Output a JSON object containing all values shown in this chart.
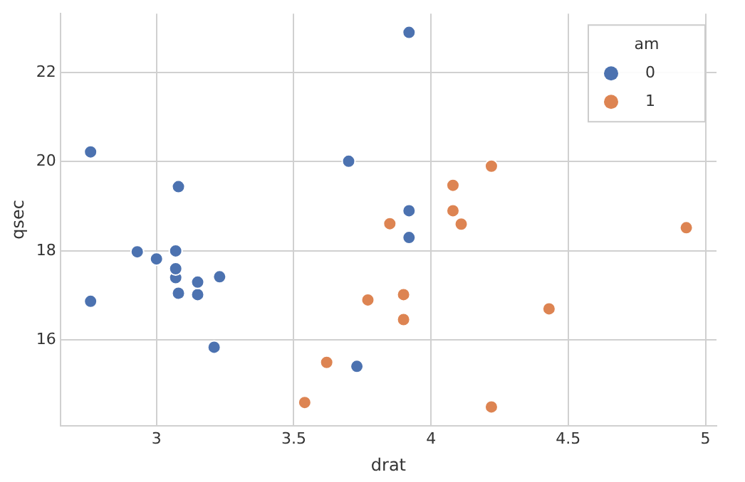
{
  "chart_data": {
    "type": "scatter",
    "xlabel": "drat",
    "ylabel": "qsec",
    "legend_title": "am",
    "legend": "top right",
    "grid": true,
    "marker": "circle",
    "xlim": [
      2.65,
      5.04
    ],
    "ylim": [
      14.08,
      23.32
    ],
    "xticks": [
      3.0,
      3.5,
      4.0,
      4.5,
      5.0
    ],
    "yticks": [
      16,
      18,
      20,
      22
    ],
    "series": [
      {
        "name": "0",
        "color": "#4c72b0",
        "x": [
          3.08,
          3.15,
          2.76,
          3.21,
          3.69,
          3.92,
          3.92,
          3.92,
          3.07,
          3.07,
          3.07,
          2.93,
          3.0,
          3.23,
          3.7,
          2.76,
          3.15,
          3.73,
          3.08
        ],
        "values": [
          19.44,
          17.02,
          20.22,
          15.84,
          null,
          22.9,
          18.3,
          18.9,
          17.4,
          17.6,
          18.0,
          17.98,
          17.82,
          17.42,
          20.01,
          16.87,
          17.3,
          15.41,
          17.05
        ]
      },
      {
        "name": "1",
        "color": "#dd8452",
        "x": [
          3.9,
          3.9,
          3.85,
          4.08,
          4.93,
          4.22,
          4.08,
          4.43,
          3.77,
          4.22,
          3.62,
          3.54,
          4.11
        ],
        "values": [
          16.46,
          17.02,
          18.61,
          19.47,
          18.52,
          19.9,
          18.9,
          16.7,
          16.9,
          14.5,
          15.5,
          14.6,
          18.6
        ]
      }
    ]
  }
}
